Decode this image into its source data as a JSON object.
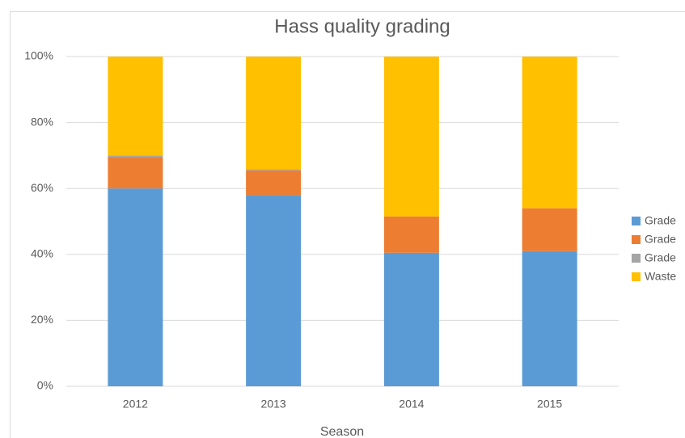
{
  "chart_data": {
    "type": "stacked_bar_100",
    "title": "Hass quality grading",
    "x_label": "Season",
    "categories": [
      "2012",
      "2013",
      "2014",
      "2015"
    ],
    "series": [
      {
        "name": "Grade",
        "color": "#5b9bd5",
        "values": [
          60,
          58,
          40.5,
          41
        ]
      },
      {
        "name": "Grade",
        "color": "#ed7d31",
        "values": [
          9.5,
          7.5,
          11,
          13
        ]
      },
      {
        "name": "Grade",
        "color": "#a5a5a5",
        "values": [
          0.5,
          0.3,
          0,
          0
        ]
      },
      {
        "name": "Waste",
        "color": "#ffc000",
        "values": [
          30,
          34.2,
          48.5,
          46
        ]
      }
    ],
    "ylim": [
      0,
      100
    ],
    "yticks": [
      {
        "value": 0,
        "label": "0%"
      },
      {
        "value": 20,
        "label": "20%"
      },
      {
        "value": 40,
        "label": "40%"
      },
      {
        "value": 60,
        "label": "60%"
      },
      {
        "value": 80,
        "label": "80%"
      },
      {
        "value": 100,
        "label": "100%"
      }
    ],
    "grid": true,
    "legend": "right"
  }
}
